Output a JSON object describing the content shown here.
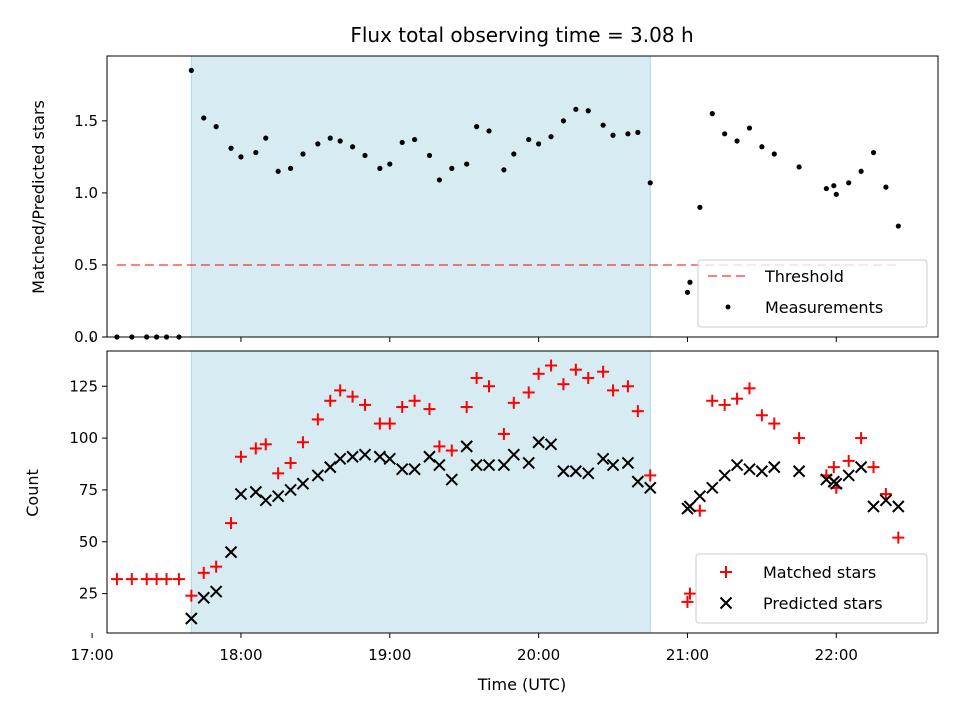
{
  "title": "Flux total observing time = 3.08 h",
  "colors": {
    "shade": "#add8e6",
    "threshold": "#ff0000",
    "measurement": "#000000",
    "matched": "#ff0000",
    "predicted": "#000000"
  },
  "chart_data": [
    {
      "type": "scatter",
      "title": "Flux total observing time = 3.08 h",
      "xlabel": "",
      "ylabel": "Matched/Predicted stars",
      "xlim": [
        "17:06",
        "22:41"
      ],
      "ylim": [
        0,
        1.95
      ],
      "yticks": [
        "0.0",
        "0.5",
        "1.0",
        "1.5"
      ],
      "shaded_interval": [
        "17:40",
        "20:45"
      ],
      "legend_position": "lower right",
      "threshold": {
        "name": "Threshold",
        "value": 0.5,
        "x_range": [
          "17:10",
          "22:25"
        ]
      },
      "series": [
        {
          "name": "Measurements",
          "points": [
            [
              "17:10",
              0.0
            ],
            [
              "17:16",
              0.0
            ],
            [
              "17:22",
              0.0
            ],
            [
              "17:26",
              0.0
            ],
            [
              "17:30",
              0.0
            ],
            [
              "17:35",
              0.0
            ],
            [
              "17:40",
              1.85
            ],
            [
              "17:45",
              1.52
            ],
            [
              "17:50",
              1.46
            ],
            [
              "17:56",
              1.31
            ],
            [
              "18:00",
              1.25
            ],
            [
              "18:06",
              1.28
            ],
            [
              "18:10",
              1.38
            ],
            [
              "18:15",
              1.15
            ],
            [
              "18:20",
              1.17
            ],
            [
              "18:25",
              1.27
            ],
            [
              "18:31",
              1.34
            ],
            [
              "18:36",
              1.38
            ],
            [
              "18:40",
              1.36
            ],
            [
              "18:45",
              1.32
            ],
            [
              "18:50",
              1.26
            ],
            [
              "18:56",
              1.17
            ],
            [
              "19:00",
              1.2
            ],
            [
              "19:05",
              1.35
            ],
            [
              "19:10",
              1.37
            ],
            [
              "19:16",
              1.26
            ],
            [
              "19:20",
              1.09
            ],
            [
              "19:25",
              1.17
            ],
            [
              "19:31",
              1.2
            ],
            [
              "19:35",
              1.46
            ],
            [
              "19:40",
              1.43
            ],
            [
              "19:46",
              1.16
            ],
            [
              "19:50",
              1.27
            ],
            [
              "19:56",
              1.37
            ],
            [
              "20:00",
              1.34
            ],
            [
              "20:05",
              1.39
            ],
            [
              "20:10",
              1.5
            ],
            [
              "20:15",
              1.58
            ],
            [
              "20:20",
              1.57
            ],
            [
              "20:26",
              1.47
            ],
            [
              "20:30",
              1.4
            ],
            [
              "20:36",
              1.41
            ],
            [
              "20:40",
              1.42
            ],
            [
              "20:45",
              1.07
            ],
            [
              "21:00",
              0.31
            ],
            [
              "21:01",
              0.38
            ],
            [
              "21:05",
              0.9
            ],
            [
              "21:10",
              1.55
            ],
            [
              "21:15",
              1.41
            ],
            [
              "21:20",
              1.36
            ],
            [
              "21:25",
              1.45
            ],
            [
              "21:30",
              1.32
            ],
            [
              "21:35",
              1.27
            ],
            [
              "21:45",
              1.18
            ],
            [
              "21:56",
              1.03
            ],
            [
              "21:59",
              1.05
            ],
            [
              "22:00",
              0.99
            ],
            [
              "22:05",
              1.07
            ],
            [
              "22:10",
              1.15
            ],
            [
              "22:15",
              1.28
            ],
            [
              "22:20",
              1.04
            ],
            [
              "22:25",
              0.77
            ]
          ]
        }
      ]
    },
    {
      "type": "scatter",
      "title": "",
      "xlabel": "Time (UTC)",
      "ylabel": "Count",
      "xlim": [
        "17:06",
        "22:41"
      ],
      "ylim": [
        6,
        142
      ],
      "yticks": [
        "25",
        "50",
        "75",
        "100",
        "125"
      ],
      "xticks": [
        "17:00",
        "18:00",
        "19:00",
        "20:00",
        "21:00",
        "22:00"
      ],
      "shaded_interval": [
        "17:40",
        "20:45"
      ],
      "legend_position": "lower right",
      "series": [
        {
          "name": "Matched stars",
          "marker": "+",
          "points": [
            [
              "17:10",
              32
            ],
            [
              "17:16",
              32
            ],
            [
              "17:22",
              32
            ],
            [
              "17:26",
              32
            ],
            [
              "17:30",
              32
            ],
            [
              "17:35",
              32
            ],
            [
              "17:40",
              24
            ],
            [
              "17:45",
              35
            ],
            [
              "17:50",
              38
            ],
            [
              "17:56",
              59
            ],
            [
              "18:00",
              91
            ],
            [
              "18:06",
              95
            ],
            [
              "18:10",
              97
            ],
            [
              "18:15",
              83
            ],
            [
              "18:20",
              88
            ],
            [
              "18:25",
              98
            ],
            [
              "18:31",
              109
            ],
            [
              "18:36",
              118
            ],
            [
              "18:40",
              123
            ],
            [
              "18:45",
              120
            ],
            [
              "18:50",
              116
            ],
            [
              "18:56",
              107
            ],
            [
              "19:00",
              107
            ],
            [
              "19:05",
              115
            ],
            [
              "19:10",
              118
            ],
            [
              "19:16",
              114
            ],
            [
              "19:20",
              96
            ],
            [
              "19:25",
              94
            ],
            [
              "19:31",
              115
            ],
            [
              "19:35",
              129
            ],
            [
              "19:40",
              125
            ],
            [
              "19:46",
              102
            ],
            [
              "19:50",
              117
            ],
            [
              "19:56",
              122
            ],
            [
              "20:00",
              131
            ],
            [
              "20:05",
              135
            ],
            [
              "20:10",
              126
            ],
            [
              "20:15",
              133
            ],
            [
              "20:20",
              129
            ],
            [
              "20:26",
              132
            ],
            [
              "20:30",
              123
            ],
            [
              "20:36",
              125
            ],
            [
              "20:40",
              113
            ],
            [
              "20:45",
              82
            ],
            [
              "21:00",
              21
            ],
            [
              "21:01",
              25
            ],
            [
              "21:05",
              65
            ],
            [
              "21:10",
              118
            ],
            [
              "21:15",
              116
            ],
            [
              "21:20",
              119
            ],
            [
              "21:25",
              124
            ],
            [
              "21:30",
              111
            ],
            [
              "21:35",
              107
            ],
            [
              "21:45",
              100
            ],
            [
              "21:56",
              82
            ],
            [
              "21:59",
              86
            ],
            [
              "22:00",
              76
            ],
            [
              "22:05",
              89
            ],
            [
              "22:10",
              100
            ],
            [
              "22:15",
              86
            ],
            [
              "22:20",
              73
            ],
            [
              "22:25",
              52
            ]
          ]
        },
        {
          "name": "Predicted stars",
          "marker": "x",
          "points": [
            [
              "17:40",
              13
            ],
            [
              "17:45",
              23
            ],
            [
              "17:50",
              26
            ],
            [
              "17:56",
              45
            ],
            [
              "18:00",
              73
            ],
            [
              "18:06",
              74
            ],
            [
              "18:10",
              70
            ],
            [
              "18:15",
              72
            ],
            [
              "18:20",
              75
            ],
            [
              "18:25",
              78
            ],
            [
              "18:31",
              82
            ],
            [
              "18:36",
              86
            ],
            [
              "18:40",
              90
            ],
            [
              "18:45",
              91
            ],
            [
              "18:50",
              92
            ],
            [
              "18:56",
              91
            ],
            [
              "19:00",
              90
            ],
            [
              "19:05",
              85
            ],
            [
              "19:10",
              85
            ],
            [
              "19:16",
              91
            ],
            [
              "19:20",
              87
            ],
            [
              "19:25",
              80
            ],
            [
              "19:31",
              96
            ],
            [
              "19:35",
              87
            ],
            [
              "19:40",
              87
            ],
            [
              "19:46",
              87
            ],
            [
              "19:50",
              92
            ],
            [
              "19:56",
              88
            ],
            [
              "20:00",
              98
            ],
            [
              "20:05",
              97
            ],
            [
              "20:10",
              84
            ],
            [
              "20:15",
              84
            ],
            [
              "20:20",
              83
            ],
            [
              "20:26",
              90
            ],
            [
              "20:30",
              87
            ],
            [
              "20:36",
              88
            ],
            [
              "20:40",
              79
            ],
            [
              "20:45",
              76
            ],
            [
              "21:00",
              66
            ],
            [
              "21:01",
              67
            ],
            [
              "21:05",
              72
            ],
            [
              "21:10",
              76
            ],
            [
              "21:15",
              82
            ],
            [
              "21:20",
              87
            ],
            [
              "21:25",
              85
            ],
            [
              "21:30",
              84
            ],
            [
              "21:35",
              86
            ],
            [
              "21:45",
              84
            ],
            [
              "21:56",
              80
            ],
            [
              "21:59",
              79
            ],
            [
              "22:00",
              78
            ],
            [
              "22:05",
              82
            ],
            [
              "22:10",
              86
            ],
            [
              "22:15",
              67
            ],
            [
              "22:20",
              70
            ],
            [
              "22:25",
              67
            ]
          ]
        }
      ]
    }
  ]
}
